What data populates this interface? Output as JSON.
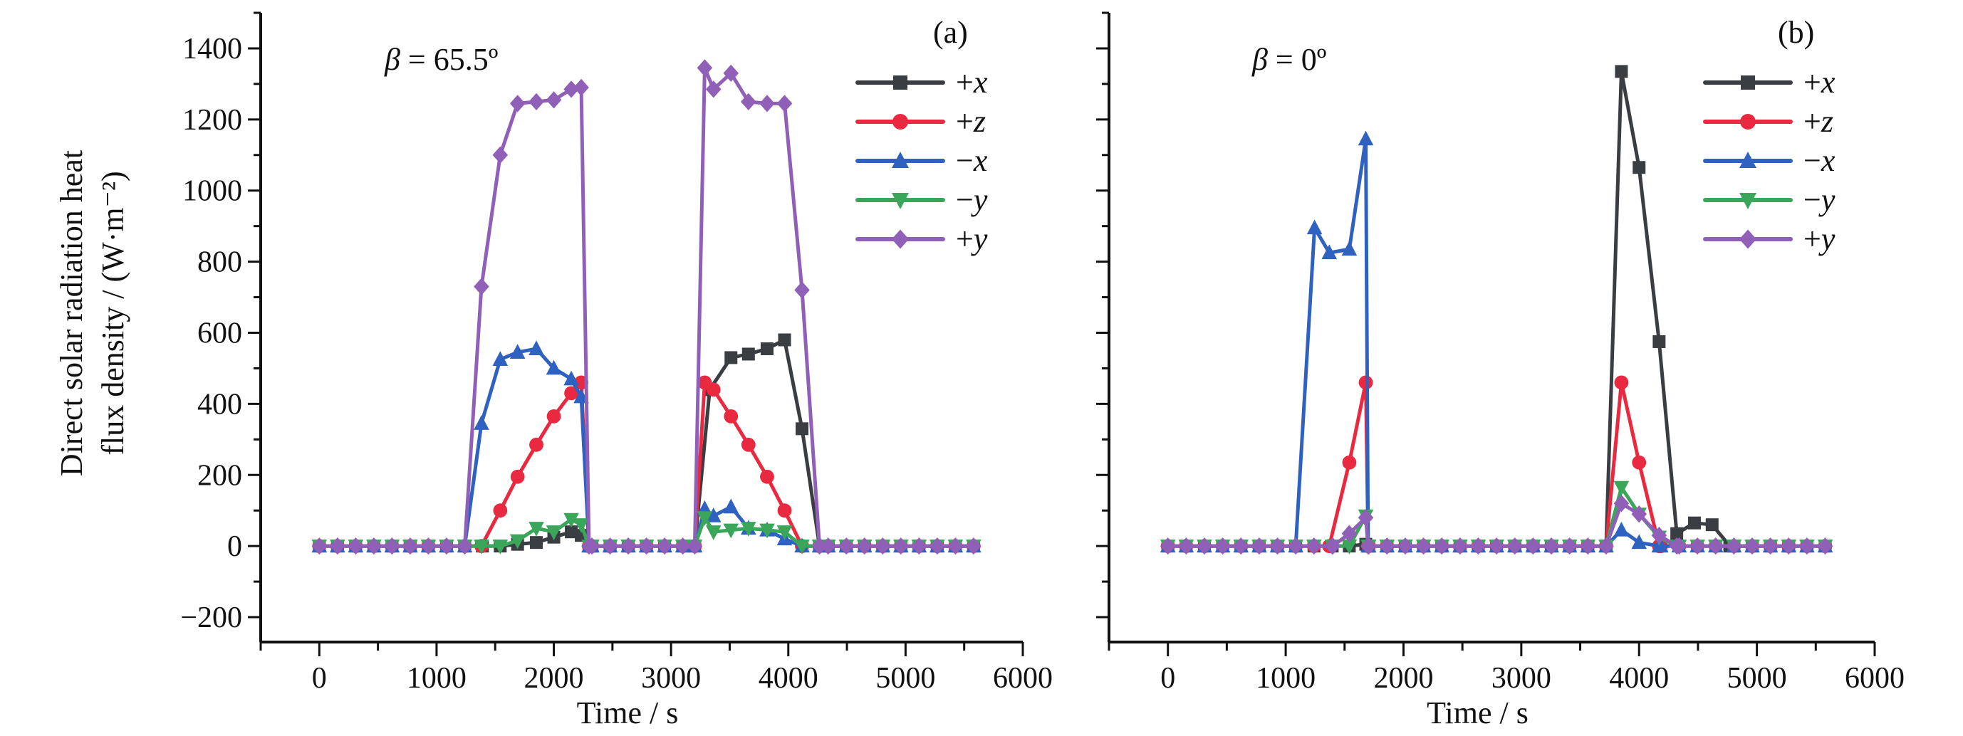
{
  "chart_data": [
    {
      "type": "line",
      "panel_label": "(a)",
      "annotation": "β = 65.5º",
      "xlabel": "Time / s",
      "ylabel_lines": [
        "Direct solar radiation heat",
        "flux density / (W·m⁻²)"
      ],
      "xlim": [
        -500,
        6000
      ],
      "ylim": [
        -270,
        1500
      ],
      "xticks": [
        0,
        1000,
        2000,
        3000,
        4000,
        5000,
        6000
      ],
      "yticks": [
        -200,
        0,
        200,
        400,
        600,
        800,
        1000,
        1200,
        1400
      ],
      "show_ytick_labels": true,
      "legend_position": "top-right",
      "base_grid": {
        "start": 0,
        "step": 155,
        "count": 37,
        "value": 0
      },
      "series": [
        {
          "name": "+x",
          "color": "#3a3d42",
          "marker": "square",
          "segments": [
            [
              [
                1391,
                0
              ],
              [
                1543,
                0
              ],
              [
                1691,
                5
              ],
              [
                1851,
                10
              ],
              [
                2000,
                25
              ],
              [
                2149,
                40
              ],
              [
                2234,
                30
              ],
              [
                2300,
                0
              ]
            ],
            [
              [
                3202,
                0
              ],
              [
                3330,
                440
              ],
              [
                3511,
                530
              ],
              [
                3660,
                540
              ],
              [
                3819,
                555
              ],
              [
                3968,
                580
              ],
              [
                4117,
                330
              ],
              [
                4266,
                0
              ]
            ]
          ]
        },
        {
          "name": "+z",
          "color": "#e8293f",
          "marker": "circle",
          "segments": [
            [
              [
                1240,
                0
              ],
              [
                1383,
                0
              ],
              [
                1543,
                100
              ],
              [
                1691,
                195
              ],
              [
                1851,
                285
              ],
              [
                2000,
                365
              ],
              [
                2149,
                430
              ],
              [
                2234,
                460
              ],
              [
                2300,
                0
              ]
            ],
            [
              [
                3202,
                0
              ],
              [
                3287,
                460
              ],
              [
                3362,
                440
              ],
              [
                3511,
                365
              ],
              [
                3660,
                285
              ],
              [
                3819,
                195
              ],
              [
                3968,
                100
              ],
              [
                4117,
                0
              ],
              [
                4266,
                0
              ]
            ]
          ]
        },
        {
          "name": "−x",
          "color": "#2f62c0",
          "marker": "triangle-up",
          "segments": [
            [
              [
                1240,
                0
              ],
              [
                1383,
                345
              ],
              [
                1543,
                525
              ],
              [
                1691,
                545
              ],
              [
                1851,
                555
              ],
              [
                2000,
                500
              ],
              [
                2149,
                470
              ],
              [
                2234,
                420
              ],
              [
                2300,
                0
              ]
            ],
            [
              [
                3202,
                0
              ],
              [
                3287,
                105
              ],
              [
                3362,
                85
              ],
              [
                3511,
                110
              ],
              [
                3660,
                50
              ],
              [
                3819,
                45
              ],
              [
                3968,
                20
              ],
              [
                4117,
                0
              ],
              [
                4266,
                0
              ]
            ]
          ]
        },
        {
          "name": "−y",
          "color": "#3aa65a",
          "marker": "triangle-down",
          "segments": [
            [
              [
                1240,
                0
              ],
              [
                1383,
                0
              ],
              [
                1543,
                0
              ],
              [
                1691,
                15
              ],
              [
                1851,
                50
              ],
              [
                2000,
                40
              ],
              [
                2149,
                75
              ],
              [
                2234,
                60
              ],
              [
                2300,
                0
              ]
            ],
            [
              [
                3202,
                0
              ],
              [
                3287,
                80
              ],
              [
                3362,
                40
              ],
              [
                3511,
                45
              ],
              [
                3660,
                50
              ],
              [
                3819,
                45
              ],
              [
                3968,
                40
              ],
              [
                4117,
                0
              ],
              [
                4266,
                0
              ]
            ]
          ]
        },
        {
          "name": "+y",
          "color": "#9060b8",
          "marker": "diamond",
          "segments": [
            [
              [
                1240,
                0
              ],
              [
                1383,
                730
              ],
              [
                1543,
                1100
              ],
              [
                1691,
                1245
              ],
              [
                1851,
                1250
              ],
              [
                2000,
                1255
              ],
              [
                2149,
                1285
              ],
              [
                2234,
                1290
              ],
              [
                2300,
                0
              ]
            ],
            [
              [
                3202,
                0
              ],
              [
                3287,
                1345
              ],
              [
                3362,
                1285
              ],
              [
                3511,
                1330
              ],
              [
                3660,
                1250
              ],
              [
                3819,
                1245
              ],
              [
                3968,
                1245
              ],
              [
                4117,
                720
              ],
              [
                4266,
                0
              ]
            ]
          ]
        }
      ]
    },
    {
      "type": "line",
      "panel_label": "(b)",
      "annotation": "β = 0º",
      "xlabel": "Time / s",
      "xlim": [
        -500,
        6000
      ],
      "ylim": [
        -270,
        1500
      ],
      "xticks": [
        0,
        1000,
        2000,
        3000,
        4000,
        5000,
        6000
      ],
      "yticks": [
        -200,
        0,
        200,
        400,
        600,
        800,
        1000,
        1200,
        1400
      ],
      "show_ytick_labels": false,
      "legend_position": "top-right",
      "base_grid": {
        "start": 0,
        "step": 155,
        "count": 37,
        "value": 0
      },
      "series": [
        {
          "name": "+x",
          "color": "#3a3d42",
          "marker": "square",
          "segments": [
            [
              [
                1540,
                0
              ],
              [
                1680,
                5
              ],
              [
                1700,
                0
              ]
            ],
            [
              [
                3720,
                0
              ],
              [
                3850,
                1335
              ],
              [
                4000,
                1065
              ],
              [
                4170,
                575
              ],
              [
                4320,
                35
              ],
              [
                4470,
                65
              ],
              [
                4620,
                60
              ],
              [
                4770,
                0
              ]
            ]
          ]
        },
        {
          "name": "+z",
          "color": "#e8293f",
          "marker": "circle",
          "segments": [
            [
              [
                1240,
                0
              ],
              [
                1370,
                0
              ],
              [
                1540,
                235
              ],
              [
                1680,
                460
              ],
              [
                1700,
                0
              ]
            ],
            [
              [
                3720,
                0
              ],
              [
                3850,
                460
              ],
              [
                4000,
                235
              ],
              [
                4170,
                0
              ]
            ]
          ]
        },
        {
          "name": "−x",
          "color": "#2f62c0",
          "marker": "triangle-up",
          "segments": [
            [
              [
                1085,
                0
              ],
              [
                1245,
                895
              ],
              [
                1370,
                825
              ],
              [
                1540,
                835
              ],
              [
                1680,
                1145
              ],
              [
                1700,
                0
              ]
            ],
            [
              [
                3720,
                0
              ],
              [
                3850,
                45
              ],
              [
                4000,
                10
              ],
              [
                4170,
                0
              ]
            ]
          ]
        },
        {
          "name": "−y",
          "color": "#3aa65a",
          "marker": "triangle-down",
          "segments": [
            [
              [
                1540,
                0
              ],
              [
                1680,
                85
              ],
              [
                1700,
                0
              ]
            ],
            [
              [
                3720,
                0
              ],
              [
                3850,
                165
              ],
              [
                4000,
                90
              ],
              [
                4170,
                25
              ],
              [
                4320,
                0
              ]
            ]
          ]
        },
        {
          "name": "+y",
          "color": "#9060b8",
          "marker": "diamond",
          "segments": [
            [
              [
                1400,
                0
              ],
              [
                1540,
                35
              ],
              [
                1680,
                80
              ],
              [
                1700,
                0
              ]
            ],
            [
              [
                3720,
                0
              ],
              [
                3850,
                120
              ],
              [
                4000,
                90
              ],
              [
                4170,
                30
              ],
              [
                4320,
                0
              ]
            ]
          ]
        }
      ]
    }
  ]
}
